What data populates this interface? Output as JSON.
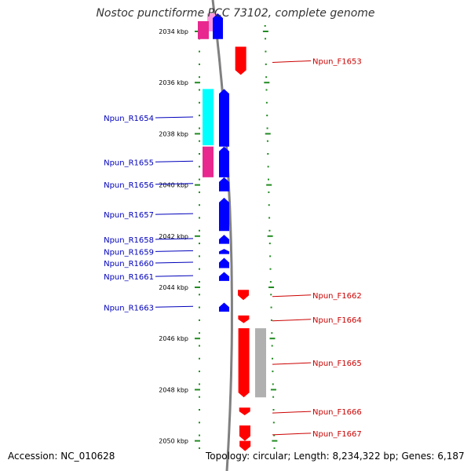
{
  "title": "Nostoc punctiforme PCC 73102, complete genome",
  "accession_text": "Accession: NC_010628",
  "topology_text": "Topology: circular; Length: 8,234,322 bp; Genes: 6,187",
  "colors": {
    "forward_gene": "#ff0000",
    "reverse_gene": "#0000ff",
    "cyan_feature": "#00ffff",
    "magenta_feature": "#e8288f",
    "pink_feature": "#ff99dd",
    "gray_feature": "#b0b0b0",
    "scale_tick": "#228b22",
    "backbone": "#808080",
    "forward_label": "#cc0000",
    "reverse_label": "#0000bb"
  },
  "ruler_ticks": [
    {
      "label": "2034 kbp",
      "kb": 2034
    },
    {
      "label": "2036 kbp",
      "kb": 2036
    },
    {
      "label": "2038 kbp",
      "kb": 2038
    },
    {
      "label": "2040 kbp",
      "kb": 2040
    },
    {
      "label": "2042 kbp",
      "kb": 2042
    },
    {
      "label": "2044 kbp",
      "kb": 2044
    },
    {
      "label": "2046 kbp",
      "kb": 2046
    },
    {
      "label": "2048 kbp",
      "kb": 2048
    },
    {
      "label": "2050 kbp",
      "kb": 2050
    }
  ],
  "forward_genes": [
    {
      "label": "Npun_F1653",
      "start_kb": 2034.6,
      "end_kb": 2035.7
    },
    {
      "label": "Npun_F1662",
      "start_kb": 2044.1,
      "end_kb": 2044.5
    },
    {
      "label": "Npun_F1664",
      "start_kb": 2045.1,
      "end_kb": 2045.4
    },
    {
      "label": "Npun_F1665",
      "start_kb": 2045.6,
      "end_kb": 2048.3
    },
    {
      "label": "Npun_F1666",
      "start_kb": 2048.7,
      "end_kb": 2049.0
    },
    {
      "label": "Npun_F1667",
      "start_kb": 2049.4,
      "end_kb": 2050.0
    },
    {
      "label": "",
      "start_kb": 2050.0,
      "end_kb": 2050.4
    }
  ],
  "reverse_genes": [
    {
      "label": "",
      "start_kb": 2033.3,
      "end_kb": 2034.3
    },
    {
      "label": "Npun_R1654",
      "start_kb": 2036.25,
      "end_kb": 2038.5
    },
    {
      "label": "Npun_R1655",
      "start_kb": 2038.5,
      "end_kb": 2039.7
    },
    {
      "label": "Npun_R1656",
      "start_kb": 2039.7,
      "end_kb": 2040.25
    },
    {
      "label": "Npun_R1657",
      "start_kb": 2040.5,
      "end_kb": 2041.8
    },
    {
      "label": "Npun_R1658",
      "start_kb": 2041.95,
      "end_kb": 2042.3
    },
    {
      "label": "Npun_R1659",
      "start_kb": 2042.5,
      "end_kb": 2042.7
    },
    {
      "label": "Npun_R1660",
      "start_kb": 2042.85,
      "end_kb": 2043.25
    },
    {
      "label": "Npun_R1661",
      "start_kb": 2043.4,
      "end_kb": 2043.75
    },
    {
      "label": "Npun_R1663",
      "start_kb": 2044.6,
      "end_kb": 2044.95
    }
  ],
  "other_features": [
    {
      "color": "pink_feature",
      "start_kb": 2033.3,
      "end_kb": 2034.0,
      "lane": "inner_left"
    },
    {
      "color": "magenta_feature",
      "start_kb": 2033.6,
      "end_kb": 2034.3,
      "lane": "inner_left"
    },
    {
      "color": "cyan_feature",
      "start_kb": 2036.25,
      "end_kb": 2038.45,
      "lane": "inner_left"
    },
    {
      "color": "magenta_feature",
      "start_kb": 2038.5,
      "end_kb": 2039.7,
      "lane": "inner_left"
    },
    {
      "color": "gray_feature",
      "start_kb": 2045.6,
      "end_kb": 2048.3,
      "lane": "outer_right"
    }
  ]
}
